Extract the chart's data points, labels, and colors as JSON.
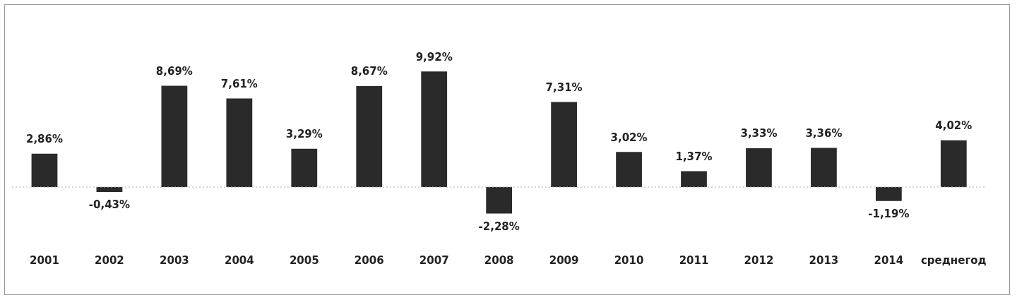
{
  "chart_data": {
    "type": "bar",
    "categories": [
      "2001",
      "2002",
      "2003",
      "2004",
      "2005",
      "2006",
      "2007",
      "2008",
      "2009",
      "2010",
      "2011",
      "2012",
      "2013",
      "2014",
      "среднегод"
    ],
    "values": [
      2.86,
      -0.43,
      8.69,
      7.61,
      3.29,
      8.67,
      9.92,
      -2.28,
      7.31,
      3.02,
      1.37,
      3.33,
      3.36,
      -1.19,
      4.02
    ],
    "value_labels": [
      "2,86%",
      "-0,43%",
      "8,69%",
      "7,61%",
      "3,29%",
      "8,67%",
      "9,92%",
      "-2,28%",
      "7,31%",
      "3,02%",
      "1,37%",
      "3,33%",
      "3,36%",
      "-1,19%",
      "4,02%"
    ],
    "color": "#2a2a2a",
    "ref_lines": [
      {
        "axis": "y",
        "value": 0,
        "color": "#aaaaaa",
        "line_style": "dotted"
      }
    ],
    "grid": false,
    "legend": false,
    "tick_labels": "x"
  }
}
